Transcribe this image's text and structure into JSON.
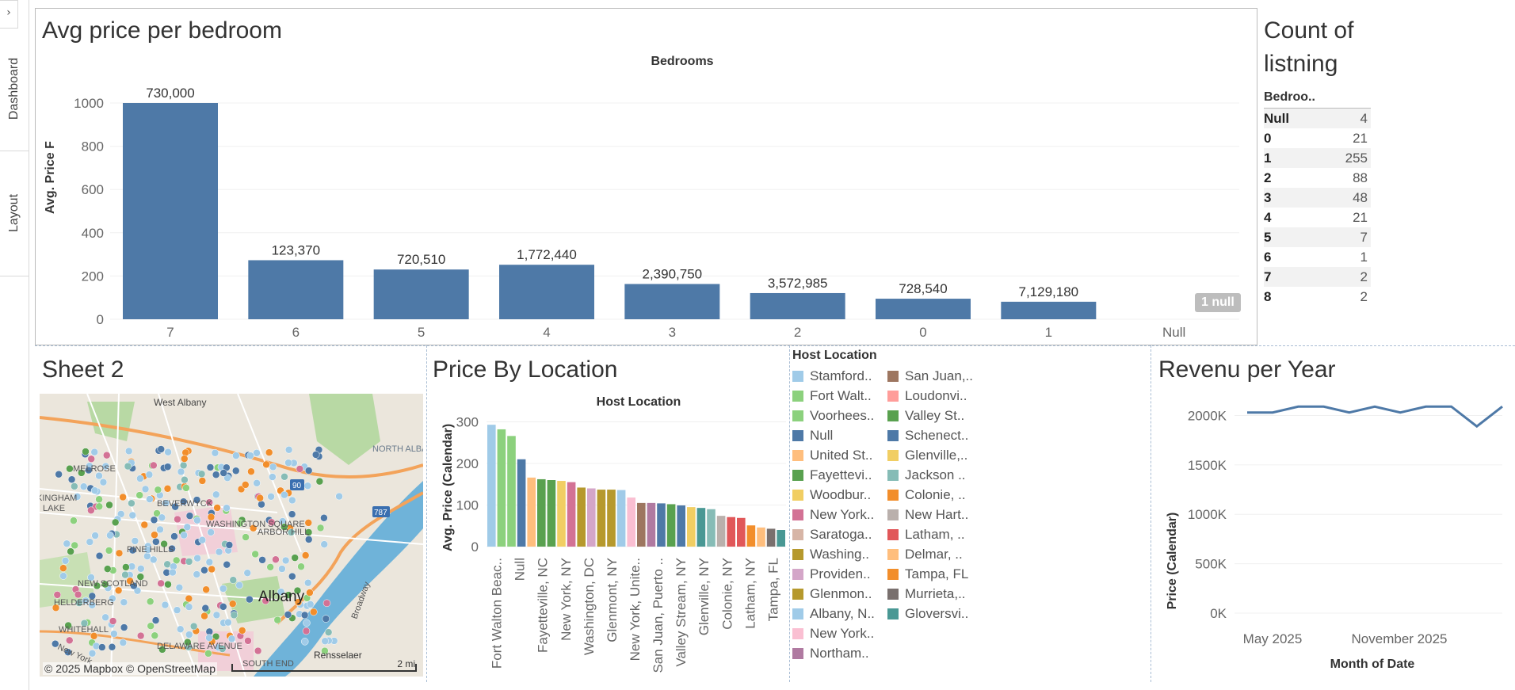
{
  "sidebar": {
    "toggle_icon": "chevron-right-icon",
    "tabs": [
      {
        "label": "Dashboard"
      },
      {
        "label": "Layout"
      }
    ]
  },
  "bedroom_chart": {
    "title": "Avg price per bedroom",
    "header": "Bedrooms",
    "ylabel": "Avg. Price F",
    "null_badge": "1 null",
    "chart_data": {
      "type": "bar",
      "categories": [
        "7",
        "6",
        "5",
        "4",
        "3",
        "2",
        "0",
        "1",
        "Null"
      ],
      "values": [
        1000,
        273,
        230,
        252,
        163,
        121,
        95,
        81,
        null
      ],
      "data_labels": [
        "730,000",
        "123,370",
        "720,510",
        "1,772,440",
        "2,390,750",
        "3,572,985",
        "728,540",
        "7,129,180",
        ""
      ],
      "yticks": [
        "0",
        "200",
        "400",
        "600",
        "800",
        "1000"
      ],
      "ylim": [
        0,
        1000
      ],
      "color": "#4e79a7"
    }
  },
  "count_table": {
    "title_line1": "Count of",
    "title_line2": "listning",
    "header": "Bedroo..",
    "rows": [
      {
        "k": "Null",
        "v": "4"
      },
      {
        "k": "0",
        "v": "21"
      },
      {
        "k": "1",
        "v": "255"
      },
      {
        "k": "2",
        "v": "88"
      },
      {
        "k": "3",
        "v": "48"
      },
      {
        "k": "4",
        "v": "21"
      },
      {
        "k": "5",
        "v": "7"
      },
      {
        "k": "6",
        "v": "1"
      },
      {
        "k": "7",
        "v": "2"
      },
      {
        "k": "8",
        "v": "2"
      }
    ]
  },
  "map_panel": {
    "title": "Sheet 2",
    "attribution": "© 2025 Mapbox © OpenStreetMap",
    "scale_label": "2 mi",
    "labels": {
      "west_albany": "West Albany",
      "north_albany": "NORTH\nALBANY",
      "melrose": "MELROSE",
      "beverwyck": "BEVERWYCK",
      "washington_square": "WASHINGTON\nSQUARE",
      "arbor_hill": "ARBOR HILL",
      "pine_hills": "PINE HILLS",
      "new_scotland": "NEW\nSCOTLAND",
      "helderberg": "HELDERBERG",
      "whitehall": "WHITEHALL",
      "delaware": "DELAWARE\nAVENUE",
      "south_end": "SOUTH END",
      "albany": "Albany",
      "rensselaer": "Rensselaer",
      "broadway": "Broadway",
      "new_york": "New York",
      "i90": "90",
      "i787": "787",
      "lake": "LAKE",
      "kingham": "KINGHAM"
    }
  },
  "location_chart": {
    "title": "Price By Location",
    "header": "Host Location",
    "ylabel": "Avg. Price (Calendar)",
    "chart_data": {
      "type": "bar",
      "values": [
        293,
        282,
        266,
        210,
        166,
        162,
        160,
        158,
        155,
        142,
        140,
        137,
        137,
        136,
        118,
        105,
        105,
        104,
        102,
        99,
        95,
        93,
        90,
        74,
        71,
        69,
        51,
        46,
        43,
        40
      ],
      "colors": [
        "#a0cbe8",
        "#8cd17d",
        "#8cd17d",
        "#4e79a7",
        "#ffbe7d",
        "#59a14f",
        "#59a14f",
        "#f1ce63",
        "#d37295",
        "#b6992d",
        "#d4a6c8",
        "#b6992d",
        "#b6992d",
        "#a0cbe8",
        "#fabfd2",
        "#9d7660",
        "#b07aa1",
        "#4e79a7",
        "#59a14f",
        "#4e79a7",
        "#f1ce63",
        "#499894",
        "#86bcb6",
        "#bab0ac",
        "#e15759",
        "#e15759",
        "#f28e2b",
        "#ffbe7d",
        "#79706e",
        "#499894"
      ],
      "xlabels": [
        "Fort Walton Beac..",
        "Null",
        "Fayetteville, NC",
        "New York, NY",
        "Washington, DC",
        "Glenmont, NY",
        "New York, Unite..",
        "San Juan, Puerto ..",
        "Valley Stream, NY",
        "Glenville, NY",
        "Colonie, NY",
        "Latham, NY",
        "Tampa, FL"
      ],
      "yticks": [
        "0",
        "100",
        "200",
        "300"
      ],
      "ylim": [
        0,
        320
      ]
    }
  },
  "legend": {
    "header": "Host Location",
    "col1": [
      {
        "label": "Stamford..",
        "color": "#a0cbe8"
      },
      {
        "label": "Fort Walt..",
        "color": "#8cd17d"
      },
      {
        "label": "Voorhees..",
        "color": "#8cd17d"
      },
      {
        "label": "Null",
        "color": "#4e79a7"
      },
      {
        "label": "United St..",
        "color": "#ffbe7d"
      },
      {
        "label": "Fayettevi..",
        "color": "#59a14f"
      },
      {
        "label": "Woodbur..",
        "color": "#f1ce63"
      },
      {
        "label": "New York..",
        "color": "#d37295"
      },
      {
        "label": "Saratoga..",
        "color": "#d7b5a6"
      },
      {
        "label": "Washing..",
        "color": "#b6992d"
      },
      {
        "label": "Providen..",
        "color": "#d4a6c8"
      },
      {
        "label": "Glenmon..",
        "color": "#b6992d"
      },
      {
        "label": "Albany, N..",
        "color": "#a0cbe8"
      },
      {
        "label": "New York..",
        "color": "#fabfd2"
      },
      {
        "label": "Northam..",
        "color": "#b07aa1"
      }
    ],
    "col2": [
      {
        "label": "San Juan,..",
        "color": "#9d7660"
      },
      {
        "label": "Loudonvi..",
        "color": "#ff9d9a"
      },
      {
        "label": "Valley St..",
        "color": "#59a14f"
      },
      {
        "label": "Schenect..",
        "color": "#4e79a7"
      },
      {
        "label": "Glenville,..",
        "color": "#f1ce63"
      },
      {
        "label": "Jackson ..",
        "color": "#86bcb6"
      },
      {
        "label": "Colonie, ..",
        "color": "#f28e2b"
      },
      {
        "label": "New Hart..",
        "color": "#bab0ac"
      },
      {
        "label": "Latham, ..",
        "color": "#e15759"
      },
      {
        "label": "Delmar, ..",
        "color": "#ffbe7d"
      },
      {
        "label": "Tampa, FL",
        "color": "#f28e2b"
      },
      {
        "label": "Murrieta,..",
        "color": "#79706e"
      },
      {
        "label": "Gloversvi..",
        "color": "#499894"
      }
    ]
  },
  "revenue_chart": {
    "title": "Revenu per Year",
    "ylabel": "Price (Calendar)",
    "xlabel": "Month of Date",
    "chart_data": {
      "type": "line",
      "values": [
        2030000,
        2030000,
        2090000,
        2090000,
        2030000,
        2090000,
        2030000,
        2090000,
        2090000,
        1890000,
        2090000
      ],
      "yticks": [
        "0K",
        "500K",
        "1000K",
        "1500K",
        "2000K"
      ],
      "xticks": [
        "May 2025",
        "November 2025"
      ],
      "ylim": [
        0,
        2100000
      ],
      "color": "#4e79a7"
    }
  }
}
